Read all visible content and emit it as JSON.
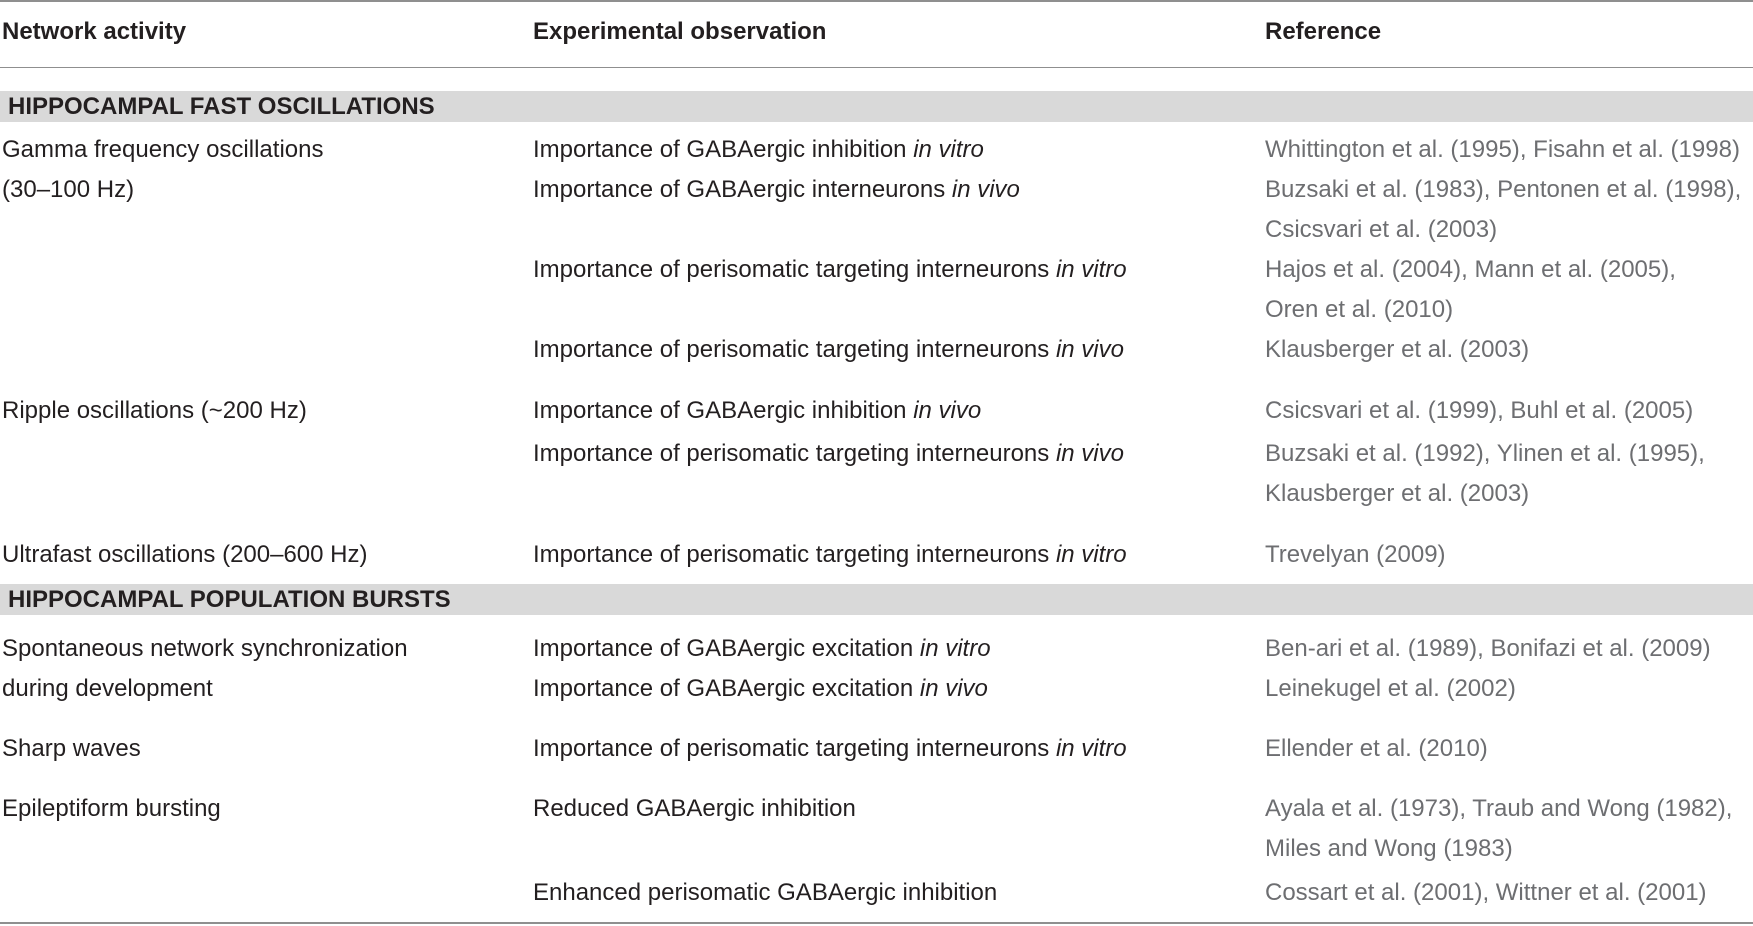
{
  "header": {
    "col_activity": "Network activity",
    "col_observation": "Experimental observation",
    "col_reference": "Reference"
  },
  "sections": {
    "fast": "HIPPOCAMPAL FAST OSCILLATIONS",
    "bursts": "HIPPOCAMPAL POPULATION BURSTS"
  },
  "activity": {
    "gamma_1": "Gamma frequency oscillations",
    "gamma_2": "(30–100 Hz)",
    "ripple": "Ripple oscillations (~200 Hz)",
    "ultrafast": "Ultrafast oscillations (200–600 Hz)",
    "spont_1": "Spontaneous network synchronization",
    "spont_2": "during development",
    "sharp": "Sharp waves",
    "epi": "Epileptiform bursting"
  },
  "observations": {
    "o1": {
      "text": "Importance of GABAergic inhibition ",
      "cond": "in vitro"
    },
    "o2": {
      "text": "Importance of GABAergic interneurons ",
      "cond": "in vivo"
    },
    "o3": {
      "text": "Importance of perisomatic targeting interneurons ",
      "cond": "in vitro"
    },
    "o4": {
      "text": "Importance of perisomatic targeting interneurons ",
      "cond": "in vivo"
    },
    "o5": {
      "text": "Importance of GABAergic inhibition ",
      "cond": "in vivo"
    },
    "o6": {
      "text": "Importance of perisomatic targeting interneurons ",
      "cond": "in vivo"
    },
    "o7": {
      "text": "Importance of perisomatic targeting interneurons ",
      "cond": "in vitro"
    },
    "o8": {
      "text": "Importance of GABAergic excitation ",
      "cond": "in vitro"
    },
    "o9": {
      "text": "Importance of GABAergic excitation ",
      "cond": "in vivo"
    },
    "o10": {
      "text": "Importance of perisomatic targeting interneurons ",
      "cond": "in vitro"
    },
    "o11": {
      "text": "Reduced GABAergic inhibition",
      "cond": ""
    },
    "o12": {
      "text": "Enhanced perisomatic GABAergic inhibition",
      "cond": ""
    }
  },
  "references": {
    "r1a": "Whittington et al. (1995)",
    "r1sep": ", ",
    "r1b": "Fisahn et al. (1998)",
    "r2a": "Buzsaki et al. (1983)",
    "r2sep": ", ",
    "r2b": "Pentonen et al. (1998)",
    "r2end": ",",
    "r2c": "Csicsvari et al. (2003)",
    "r3a": "Hajos et al. (2004)",
    "r3sep": ", ",
    "r3b": "Mann et al. (2005)",
    "r3end": ",",
    "r3c": "Oren et al. (2010)",
    "r4a": "Klausberger et al. (2003)",
    "r5a": "Csicsvari et al. (1999)",
    "r5sep": ", ",
    "r5b": "Buhl et al. (2005)",
    "r6a": "Buzsaki et al. (1992)",
    "r6sep": ", ",
    "r6b": "Ylinen et al. (1995)",
    "r6end": ",",
    "r6c": "Klausberger et al. (2003)",
    "r7a": "Trevelyan (2009)",
    "r8a": "Ben-ari et al. (1989)",
    "r8sep": ", ",
    "r8b": "Bonifazi et al. (2009)",
    "r9a": "Leinekugel et al. (2002)",
    "r10a": "Ellender et al. (2010)",
    "r11a": "Ayala et al. (1973)",
    "r11sep": ", ",
    "r11b": "Traub and Wong (1982)",
    "r11end": ",",
    "r11c": "Miles and Wong (1983)",
    "r12a": "Cossart et al. (2001)",
    "r12sep": ", ",
    "r12b": "Wittner et al. (2001)"
  }
}
